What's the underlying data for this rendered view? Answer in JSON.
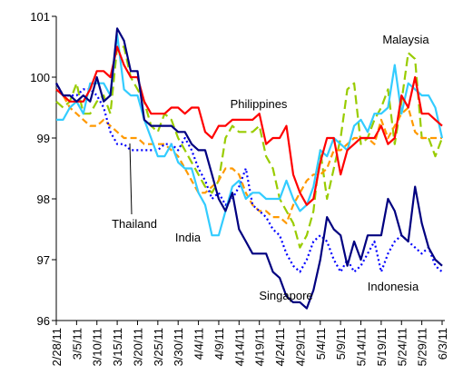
{
  "chart_data": {
    "type": "line",
    "categories": [
      "2/28/11",
      null,
      null,
      "3/5/11",
      null,
      null,
      "3/10/11",
      null,
      null,
      "3/15/11",
      null,
      null,
      "3/20/11",
      null,
      null,
      "3/25/11",
      null,
      null,
      "3/30/11",
      null,
      null,
      "4/4/11",
      null,
      null,
      "4/9/11",
      null,
      null,
      "4/14/11",
      null,
      null,
      "4/19/11",
      null,
      null,
      "4/24/11",
      null,
      null,
      "4/29/11",
      null,
      null,
      "5/4/11",
      null,
      null,
      "5/9/11",
      null,
      null,
      "5/14/11",
      null,
      null,
      "5/19/11",
      null,
      null,
      "5/24/11",
      null,
      null,
      "5/29/11",
      null,
      null,
      "6/3/11"
    ],
    "ylim": [
      96,
      101
    ],
    "yticks": [
      96,
      97,
      98,
      99,
      100,
      101
    ],
    "grid": false,
    "series": [
      {
        "name": "Singapore",
        "color": "#000080",
        "style": "solid",
        "values": [
          99.9,
          99.7,
          99.7,
          99.6,
          99.7,
          99.6,
          100.0,
          99.6,
          99.7,
          100.8,
          100.6,
          100.1,
          100.1,
          99.3,
          99.2,
          99.2,
          99.2,
          99.2,
          99.1,
          99.1,
          98.9,
          98.8,
          98.8,
          98.4,
          98.0,
          97.8,
          98.1,
          97.5,
          97.3,
          97.1,
          97.1,
          97.1,
          96.8,
          96.7,
          96.4,
          96.3,
          96.3,
          96.2,
          96.5,
          97.0,
          97.7,
          97.5,
          97.4,
          96.9,
          97.3,
          97.0,
          97.4,
          97.4,
          97.4,
          98.0,
          97.8,
          97.4,
          97.3,
          98.2,
          97.6,
          97.2,
          97.0,
          96.9
        ]
      },
      {
        "name": "Philippines",
        "color": "#ff0000",
        "style": "solid",
        "values": [
          99.8,
          99.7,
          99.6,
          99.6,
          99.6,
          99.8,
          100.1,
          100.1,
          100.0,
          100.5,
          100.2,
          100.0,
          100.0,
          99.6,
          99.4,
          99.4,
          99.4,
          99.5,
          99.5,
          99.4,
          99.5,
          99.5,
          99.1,
          99.0,
          99.2,
          99.2,
          99.3,
          99.3,
          99.3,
          99.3,
          99.4,
          98.9,
          99.0,
          99.0,
          99.2,
          98.4,
          98.1,
          97.9,
          98.0,
          98.6,
          99.0,
          99.0,
          98.4,
          98.8,
          98.9,
          99.0,
          99.0,
          99.0,
          99.2,
          98.9,
          99.0,
          99.7,
          99.5,
          100.0,
          99.4,
          99.4,
          99.3,
          99.2
        ]
      },
      {
        "name": "India",
        "color": "#33ccff",
        "style": "solid",
        "values": [
          99.3,
          99.3,
          99.5,
          99.6,
          99.4,
          99.9,
          99.9,
          99.9,
          99.7,
          100.7,
          99.8,
          99.7,
          99.7,
          99.3,
          99.0,
          98.7,
          98.7,
          98.9,
          98.6,
          98.5,
          98.5,
          98.1,
          97.9,
          97.4,
          97.4,
          97.8,
          98.2,
          98.3,
          98.0,
          98.1,
          98.1,
          98.0,
          98.0,
          98.0,
          98.3,
          98.0,
          97.8,
          97.9,
          98.2,
          98.8,
          98.7,
          99.0,
          98.9,
          98.8,
          99.2,
          99.3,
          99.1,
          99.4,
          99.4,
          99.5,
          100.2,
          99.4,
          99.9,
          99.8,
          99.7,
          99.7,
          99.5,
          99.0
        ]
      },
      {
        "name": "Thailand",
        "color": "#ff9900",
        "style": "dashed",
        "values": [
          99.8,
          99.7,
          99.5,
          99.4,
          99.3,
          99.2,
          99.2,
          99.3,
          99.2,
          99.1,
          99.0,
          99.0,
          99.0,
          98.9,
          98.9,
          98.9,
          98.9,
          98.8,
          98.7,
          98.5,
          98.3,
          98.1,
          98.1,
          98.2,
          98.3,
          98.5,
          98.5,
          98.4,
          98.1,
          97.9,
          97.8,
          97.8,
          97.7,
          97.7,
          97.6,
          97.9,
          98.1,
          98.3,
          98.4,
          98.4,
          98.5,
          98.8,
          98.8,
          98.9,
          99.0,
          99.0,
          99.0,
          98.9,
          99.3,
          99.0,
          99.2,
          99.4,
          99.5,
          99.1,
          99.0,
          99.0,
          99.0,
          99.0
        ]
      },
      {
        "name": "Malaysia",
        "color": "#99cc00",
        "style": "longdash",
        "values": [
          99.6,
          99.5,
          99.6,
          99.9,
          99.4,
          99.4,
          99.6,
          99.7,
          99.4,
          100.5,
          100.5,
          100.0,
          99.8,
          99.6,
          99.2,
          99.1,
          99.4,
          99.3,
          99.0,
          98.8,
          98.6,
          98.4,
          98.2,
          98.1,
          98.3,
          99.0,
          99.2,
          99.1,
          99.1,
          99.1,
          99.2,
          98.7,
          98.5,
          98.0,
          97.8,
          97.6,
          97.2,
          97.4,
          97.8,
          98.8,
          98.0,
          98.5,
          99.0,
          99.8,
          99.9,
          98.9,
          99.0,
          99.3,
          99.5,
          99.8,
          98.9,
          99.6,
          100.4,
          100.3,
          99.0,
          99.0,
          98.7,
          99.0
        ]
      },
      {
        "name": "Indonesia",
        "color": "#0000ff",
        "style": "dotted",
        "values": [
          99.9,
          99.7,
          99.7,
          99.7,
          99.8,
          99.8,
          99.7,
          99.5,
          99.1,
          98.9,
          98.9,
          98.8,
          98.8,
          98.8,
          98.8,
          98.8,
          98.9,
          98.9,
          98.8,
          99.0,
          98.8,
          98.5,
          98.3,
          98.0,
          98.1,
          97.9,
          98.0,
          98.2,
          98.5,
          97.9,
          97.8,
          97.7,
          97.5,
          97.4,
          97.1,
          96.9,
          96.8,
          97.0,
          97.3,
          97.4,
          97.3,
          97.0,
          96.8,
          97.0,
          96.8,
          96.9,
          97.1,
          97.3,
          96.8,
          97.1,
          97.3,
          97.4,
          97.3,
          97.2,
          97.1,
          97.2,
          96.9,
          96.8
        ]
      }
    ]
  }
}
